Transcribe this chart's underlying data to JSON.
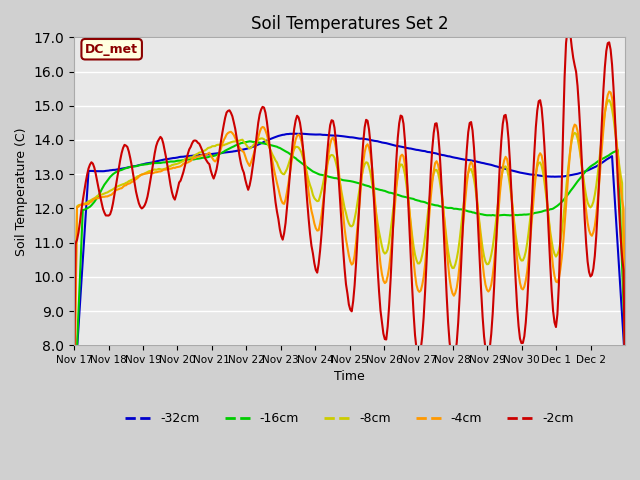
{
  "title": "Soil Temperatures Set 2",
  "xlabel": "Time",
  "ylabel": "Soil Temperature (C)",
  "ylim": [
    8.0,
    17.0
  ],
  "yticks": [
    8.0,
    9.0,
    10.0,
    11.0,
    12.0,
    13.0,
    14.0,
    15.0,
    16.0,
    17.0
  ],
  "bg_color": "#e8e8e8",
  "legend_label": "DC_met",
  "series_labels": [
    "-32cm",
    "-16cm",
    "-8cm",
    "-4cm",
    "-2cm"
  ],
  "series_colors": [
    "#0000cc",
    "#00cc00",
    "#cccc00",
    "#ff9900",
    "#cc0000"
  ],
  "xtick_labels": [
    "Nov 17",
    "Nov 18",
    "Nov 19",
    "Nov 20",
    "Nov 21",
    "Nov 22",
    "Nov 23",
    "Nov 24",
    "Nov 25",
    "Nov 26",
    "Nov 27",
    "Nov 28",
    "Nov 29",
    "Nov 30",
    "Dec 1",
    "Dec 2"
  ],
  "n_points_per_day": 24
}
